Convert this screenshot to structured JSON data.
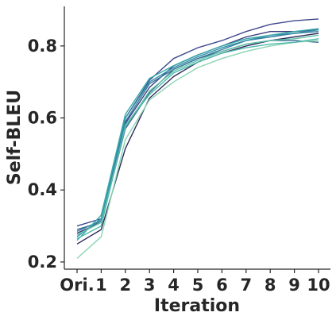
{
  "chart_data": {
    "type": "line",
    "xlabel": "Iteration",
    "ylabel": "Self-BLEU",
    "x_ticks": [
      "Ori.",
      "1",
      "2",
      "3",
      "4",
      "5",
      "6",
      "7",
      "8",
      "9",
      "10"
    ],
    "y_ticks": [
      0.2,
      0.4,
      0.6,
      0.8
    ],
    "ylim": [
      0.18,
      0.91
    ],
    "grid": false,
    "legend": "none",
    "series": [
      {
        "color": "#2e2a5a",
        "values": [
          0.25,
          0.29,
          0.515,
          0.655,
          0.715,
          0.755,
          0.78,
          0.8,
          0.815,
          0.825,
          0.835
        ]
      },
      {
        "color": "#3b3b7a",
        "values": [
          0.28,
          0.31,
          0.585,
          0.685,
          0.745,
          0.775,
          0.8,
          0.825,
          0.84,
          0.84,
          0.845
        ]
      },
      {
        "color": "#40498e",
        "values": [
          0.3,
          0.32,
          0.6,
          0.705,
          0.765,
          0.795,
          0.815,
          0.84,
          0.86,
          0.87,
          0.875
        ]
      },
      {
        "color": "#3a6690",
        "values": [
          0.29,
          0.31,
          0.57,
          0.67,
          0.735,
          0.765,
          0.785,
          0.805,
          0.815,
          0.815,
          0.81
        ]
      },
      {
        "color": "#357ba2",
        "values": [
          0.285,
          0.315,
          0.59,
          0.695,
          0.735,
          0.765,
          0.79,
          0.815,
          0.825,
          0.835,
          0.84
        ]
      },
      {
        "color": "#348fa7",
        "values": [
          0.27,
          0.32,
          0.6,
          0.7,
          0.74,
          0.77,
          0.795,
          0.815,
          0.83,
          0.835,
          0.845
        ]
      },
      {
        "color": "#38aaac",
        "values": [
          0.26,
          0.33,
          0.61,
          0.71,
          0.745,
          0.775,
          0.8,
          0.82,
          0.83,
          0.84,
          0.848
        ]
      },
      {
        "color": "#60c5a8",
        "values": [
          0.275,
          0.31,
          0.575,
          0.675,
          0.73,
          0.76,
          0.785,
          0.805,
          0.815,
          0.82,
          0.83
        ]
      },
      {
        "color": "#8bd4b4",
        "values": [
          0.21,
          0.27,
          0.54,
          0.65,
          0.7,
          0.74,
          0.765,
          0.785,
          0.8,
          0.81,
          0.815
        ]
      },
      {
        "color": "#4fb9ad",
        "values": [
          0.265,
          0.3,
          0.58,
          0.665,
          0.725,
          0.755,
          0.78,
          0.795,
          0.805,
          0.81,
          0.82
        ]
      }
    ]
  }
}
